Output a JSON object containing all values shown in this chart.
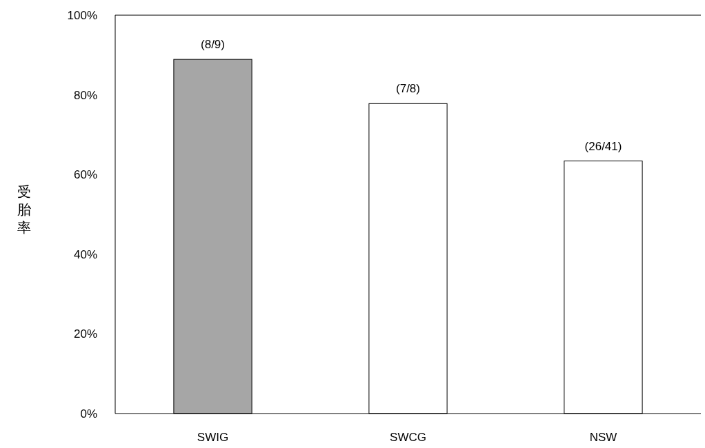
{
  "chart_data": {
    "type": "bar",
    "ylabel": "受胎率",
    "categories": [
      "SWIG",
      "SWCG",
      "NSW"
    ],
    "values": [
      88.9,
      77.8,
      63.4
    ],
    "colors": [
      "#a6a6a6",
      "#ffffff",
      "#ffffff"
    ],
    "value_labels": [
      "(8/9)",
      "(7/8)",
      "(26/41)"
    ],
    "ylim": [
      0,
      100
    ],
    "yticks": [
      {
        "value": 0,
        "label": "0%"
      },
      {
        "value": 20,
        "label": "20%"
      },
      {
        "value": 40,
        "label": "40%"
      },
      {
        "value": 60,
        "label": "60%"
      },
      {
        "value": 80,
        "label": "80%"
      },
      {
        "value": 100,
        "label": "100%"
      }
    ],
    "grid": false
  }
}
